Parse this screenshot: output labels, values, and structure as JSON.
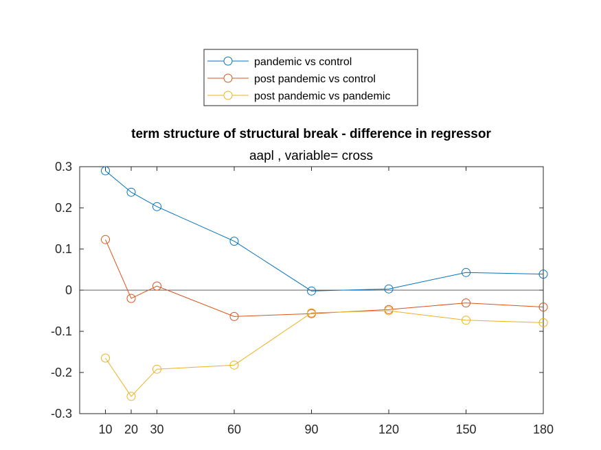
{
  "chart_data": {
    "type": "line",
    "title": "term structure of structural break - difference in regressor",
    "subtitle": "aapl  , variable= cross",
    "xlabel": "",
    "ylabel": "",
    "xlim": [
      0,
      180
    ],
    "ylim": [
      -0.3,
      0.3
    ],
    "x_ticks": [
      10,
      20,
      30,
      60,
      90,
      120,
      150,
      180
    ],
    "y_ticks": [
      0.3,
      0.2,
      0.1,
      0,
      -0.1,
      -0.2,
      -0.3
    ],
    "y_tick_labels": [
      "0.3",
      "0.2",
      "0.1",
      "0",
      "-0.1",
      "-0.2",
      "-0.3"
    ],
    "x": [
      10,
      20,
      30,
      60,
      90,
      120,
      150,
      180
    ],
    "zero_line": true,
    "grid": false,
    "legend_position": "top-center",
    "series": [
      {
        "name": "pandemic vs control",
        "color": "#0072BD",
        "values": [
          0.29,
          0.238,
          0.203,
          0.119,
          -0.002,
          0.003,
          0.043,
          0.039
        ]
      },
      {
        "name": "post pandemic vs control",
        "color": "#D95319",
        "values": [
          0.123,
          -0.02,
          0.01,
          -0.064,
          -0.057,
          -0.047,
          -0.031,
          -0.041
        ]
      },
      {
        "name": "post pandemic vs pandemic",
        "color": "#EDB120",
        "values": [
          -0.165,
          -0.258,
          -0.192,
          -0.182,
          -0.055,
          -0.05,
          -0.073,
          -0.079
        ]
      }
    ]
  }
}
